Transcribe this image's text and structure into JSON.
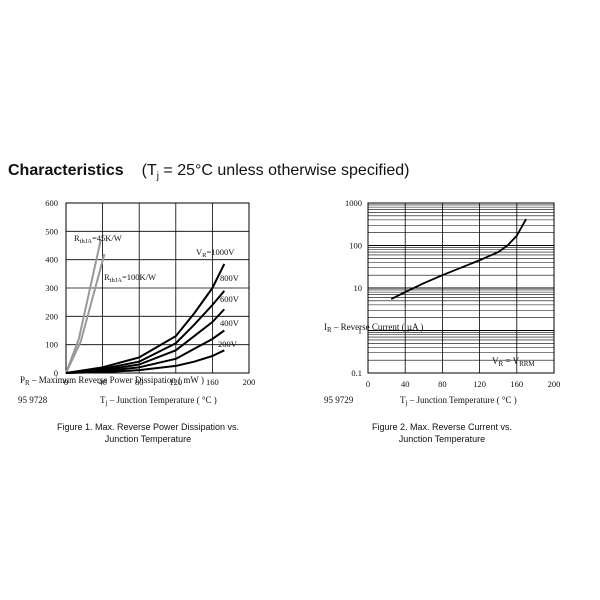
{
  "header": {
    "title": "Characteristics",
    "condition_prefix": "(T",
    "condition_sub": "j",
    "condition_suffix": " = 25°C unless otherwise specified)"
  },
  "chart_data": [
    {
      "type": "line",
      "doc_number": "95 9728",
      "caption_line1": "Figure 1. Max. Reverse Power Dissipation vs.",
      "caption_line2": "Junction Temperature",
      "xlabel": "T",
      "xlabel_sub": "j",
      "xlabel_suffix": " – Junction Temperature ( °C )",
      "ylabel": "P",
      "ylabel_sub": "R",
      "ylabel_suffix": " – Maximum Reverse Power Dissipation ( mW )",
      "xlim": [
        0,
        200
      ],
      "ylim": [
        0,
        600
      ],
      "xticks": [
        "0",
        "40",
        "80",
        "120",
        "160",
        "200"
      ],
      "yticks": [
        "0",
        "100",
        "200",
        "300",
        "400",
        "500",
        "600"
      ],
      "grid": true,
      "series": [
        {
          "name": "R",
          "name_sub": "thJA",
          "name_suffix": "=45K/W",
          "x": [
            0,
            14,
            38
          ],
          "y": [
            0,
            120,
            470
          ],
          "color": "#999999"
        },
        {
          "name": "R",
          "name_sub": "thJA",
          "name_suffix": "=100K/W",
          "x": [
            0,
            16,
            42
          ],
          "y": [
            0,
            110,
            420
          ],
          "color": "#999999"
        },
        {
          "name": "V",
          "name_sub": "R",
          "name_suffix": "=1000V",
          "x": [
            0,
            40,
            80,
            120,
            140,
            160,
            173
          ],
          "y": [
            0,
            20,
            55,
            130,
            210,
            300,
            385
          ],
          "color": "#000000"
        },
        {
          "name": "800V",
          "name_sub": "",
          "name_suffix": "",
          "x": [
            0,
            40,
            80,
            120,
            140,
            160,
            173
          ],
          "y": [
            0,
            15,
            40,
            105,
            170,
            240,
            290
          ],
          "color": "#000000"
        },
        {
          "name": "600V",
          "name_sub": "",
          "name_suffix": "",
          "x": [
            0,
            40,
            80,
            120,
            140,
            160,
            173
          ],
          "y": [
            0,
            10,
            30,
            80,
            130,
            180,
            225
          ],
          "color": "#000000"
        },
        {
          "name": "400V",
          "name_sub": "",
          "name_suffix": "",
          "x": [
            0,
            40,
            80,
            120,
            140,
            160,
            173
          ],
          "y": [
            0,
            6,
            20,
            50,
            85,
            120,
            150
          ],
          "color": "#000000"
        },
        {
          "name": "200V",
          "name_sub": "",
          "name_suffix": "",
          "x": [
            0,
            40,
            80,
            120,
            140,
            160,
            173
          ],
          "y": [
            0,
            3,
            10,
            25,
            40,
            60,
            80
          ],
          "color": "#000000"
        }
      ]
    },
    {
      "type": "line",
      "doc_number": "95 9729",
      "caption_line1": "Figure 2. Max. Reverse Current vs.",
      "caption_line2": "Junction Temperature",
      "xlabel": "T",
      "xlabel_sub": "j",
      "xlabel_suffix": " – Junction Temperature ( °C )",
      "ylabel": "I",
      "ylabel_sub": "R",
      "ylabel_suffix": " – Reverse Current ( µA )",
      "xlim": [
        0,
        200
      ],
      "ylim": [
        0.1,
        1000
      ],
      "y_scale": "log",
      "xticks": [
        "0",
        "40",
        "80",
        "120",
        "160",
        "200"
      ],
      "yticks": [
        "0.1",
        "1",
        "10",
        "100",
        "1000"
      ],
      "grid": true,
      "annotation": "V",
      "annotation_sub": "R",
      "annotation_mid": " = V",
      "annotation_sub2": "RRM",
      "series": [
        {
          "name": "",
          "x": [
            25,
            40,
            60,
            80,
            100,
            120,
            140,
            150,
            160,
            170
          ],
          "y": [
            5.5,
            8,
            13,
            20,
            30,
            45,
            70,
            100,
            170,
            420
          ],
          "color": "#000000"
        }
      ]
    }
  ]
}
